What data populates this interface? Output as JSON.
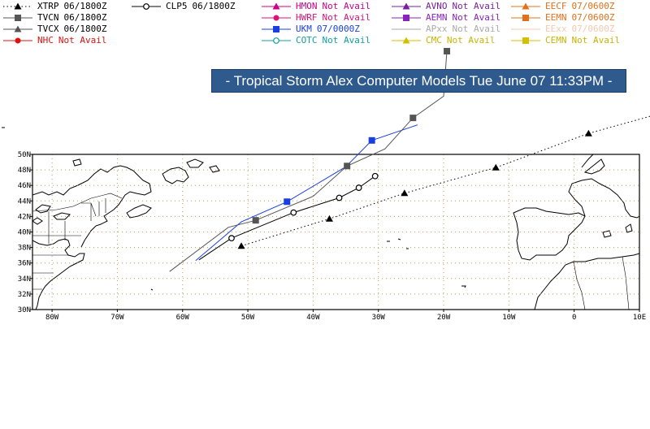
{
  "title": "- Tropical Storm Alex Computer Models Tue June 07 11:33PM -",
  "legend": [
    {
      "id": "xtrp",
      "label": "XTRP",
      "status": "06/1800Z",
      "color": "#000000",
      "text_color": "#000000",
      "marker": "triangle",
      "line": "dotted"
    },
    {
      "id": "clp5",
      "label": "CLP5",
      "status": "06/1800Z",
      "color": "#000000",
      "text_color": "#000000",
      "marker": "circle-open",
      "line": "solid"
    },
    {
      "id": "hmon",
      "label": "HMON",
      "status": "Not Avail",
      "color": "#cc0088",
      "text_color": "#cc0088",
      "marker": "triangle",
      "line": "solid"
    },
    {
      "id": "avno",
      "label": "AVNO",
      "status": "Not Avail",
      "color": "#7a1fa0",
      "text_color": "#7a1fa0",
      "marker": "triangle",
      "line": "solid"
    },
    {
      "id": "eecf",
      "label": "EECF",
      "status": "07/0600Z",
      "color": "#e0701a",
      "text_color": "#e0701a",
      "marker": "triangle",
      "line": "solid"
    },
    {
      "id": "tvcn",
      "label": "TVCN",
      "status": "06/1800Z",
      "color": "#555555",
      "text_color": "#000000",
      "marker": "square",
      "line": "solid"
    },
    {
      "id": "hwrf",
      "label": "HWRF",
      "status": "Not Avail",
      "color": "#dd1177",
      "text_color": "#dd1177",
      "marker": "circle",
      "line": "solid"
    },
    {
      "id": "aemn",
      "label": "AEMN",
      "status": "Not Avail",
      "color": "#8822bb",
      "text_color": "#8822bb",
      "marker": "square",
      "line": "solid"
    },
    {
      "id": "eemn",
      "label": "EEMN",
      "status": "07/0600Z",
      "color": "#e0701a",
      "text_color": "#e0701a",
      "marker": "square",
      "line": "solid"
    },
    {
      "id": "tvcx",
      "label": "TVCX",
      "status": "06/1800Z",
      "color": "#555555",
      "text_color": "#000000",
      "marker": "triangle",
      "line": "solid"
    },
    {
      "id": "ukm",
      "label": "UKM",
      "status": "07/0000Z",
      "color": "#1a3fe0",
      "text_color": "#1a3fe0",
      "marker": "square",
      "line": "solid"
    },
    {
      "id": "apxx",
      "label": "APxx",
      "status": "Not Avail",
      "color": "#aaaaaa",
      "text_color": "#aaaaaa",
      "marker": "none",
      "line": "solid"
    },
    {
      "id": "eexx",
      "label": "EExx",
      "status": "07/0600Z",
      "color": "#f2c9b0",
      "text_color": "#f2c9b0",
      "marker": "none",
      "line": "solid"
    },
    {
      "id": "nhc",
      "label": "NHC",
      "status": "Not Avail",
      "color": "#e01010",
      "text_color": "#e01010",
      "marker": "circle",
      "line": "solid"
    },
    {
      "id": "cotc",
      "label": "COTC",
      "status": "Not Avail",
      "color": "#10a0a0",
      "text_color": "#10a0a0",
      "marker": "circle-open",
      "line": "solid"
    },
    {
      "id": "cmc",
      "label": "CMC",
      "status": "Not Avail",
      "color": "#d4c000",
      "text_color": "#c8b400",
      "marker": "triangle",
      "line": "solid"
    },
    {
      "id": "cemn",
      "label": "CEMN",
      "status": "Not Avail",
      "color": "#d4c000",
      "text_color": "#c8b400",
      "marker": "square",
      "line": "solid"
    }
  ],
  "map": {
    "lon_range": [
      -83,
      10
    ],
    "lat_range": [
      30,
      50
    ],
    "lat_ticks": [
      "30N",
      "32N",
      "34N",
      "36N",
      "38N",
      "40N",
      "42N",
      "44N",
      "46N",
      "48N",
      "50N"
    ],
    "lon_ticks": [
      "80W",
      "70W",
      "60W",
      "50W",
      "40W",
      "30W",
      "20W",
      "10W",
      "0",
      "10E"
    ],
    "grid": true,
    "colors": {
      "land_outline": "#000000",
      "frame": "#000000",
      "grid": "#b89a50",
      "panel_bg": "#2f5a8e"
    }
  },
  "tracks": [
    {
      "model": "UKM",
      "color": "#1a3fe0",
      "marker": "square",
      "points": [
        [
          -58,
          36.3
        ],
        [
          -51,
          41.3
        ],
        [
          -44,
          43.9
        ],
        [
          -35,
          48.4
        ],
        [
          -31,
          51.8
        ],
        [
          -24,
          53.8
        ]
      ],
      "marked": [
        2,
        4
      ]
    },
    {
      "model": "TVCN",
      "color": "#555555",
      "marker": "square",
      "points": [
        [
          -62,
          34.9
        ],
        [
          -53,
          40.6
        ],
        [
          -48.8,
          41.5
        ],
        [
          -40,
          44.6
        ],
        [
          -34.8,
          48.5
        ],
        [
          -29,
          50.7
        ],
        [
          -24.7,
          54.7
        ],
        [
          -20,
          57.5
        ],
        [
          -19.5,
          63.3
        ]
      ],
      "marked": [
        2,
        4,
        6,
        8
      ]
    },
    {
      "model": "CLP5",
      "color": "#000000",
      "marker": "circle-open",
      "points": [
        [
          -57.5,
          36.4
        ],
        [
          -52.5,
          39.2
        ],
        [
          -43,
          42.5
        ],
        [
          -36,
          44.4
        ],
        [
          -33,
          45.7
        ],
        [
          -30.5,
          47.2
        ]
      ],
      "marked": [
        1,
        2,
        3,
        4,
        5
      ]
    },
    {
      "model": "XTRP",
      "color": "#000000",
      "marker": "triangle",
      "dotted": true,
      "points": [
        [
          -51,
          38.2
        ],
        [
          -37.5,
          41.7
        ],
        [
          -26,
          45.0
        ],
        [
          -12,
          48.3
        ],
        [
          2.2,
          52.7
        ],
        [
          12,
          55
        ]
      ],
      "marked": [
        0,
        1,
        2,
        3,
        4
      ]
    }
  ]
}
